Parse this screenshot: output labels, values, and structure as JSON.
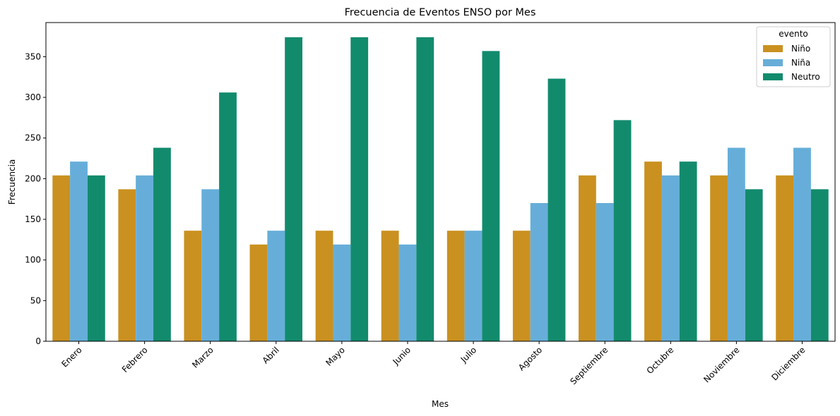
{
  "chart_data": {
    "type": "bar",
    "title": "Frecuencia de Eventos ENSO por Mes",
    "xlabel": "Mes",
    "ylabel": "Frecuencia",
    "ylim": [
      0,
      392
    ],
    "yticks": [
      0,
      50,
      100,
      150,
      200,
      250,
      300,
      350
    ],
    "grid": false,
    "legend": {
      "title": "evento",
      "placement": "top-right"
    },
    "categories": [
      "Enero",
      "Febrero",
      "Marzo",
      "Abril",
      "Mayo",
      "Junio",
      "Julio",
      "Agosto",
      "Septiembre",
      "Octubre",
      "Noviembre",
      "Diciembre"
    ],
    "series": [
      {
        "name": "Niño",
        "color": "#ca9120",
        "values": [
          204,
          187,
          136,
          119,
          136,
          136,
          136,
          136,
          204,
          221,
          204,
          204
        ]
      },
      {
        "name": "Niña",
        "color": "#66aed9",
        "values": [
          221,
          204,
          187,
          136,
          119,
          119,
          136,
          170,
          170,
          204,
          238,
          238
        ]
      },
      {
        "name": "Neutro",
        "color": "#128b6d",
        "values": [
          204,
          238,
          306,
          374,
          374,
          374,
          357,
          323,
          272,
          221,
          187,
          187
        ]
      }
    ]
  }
}
